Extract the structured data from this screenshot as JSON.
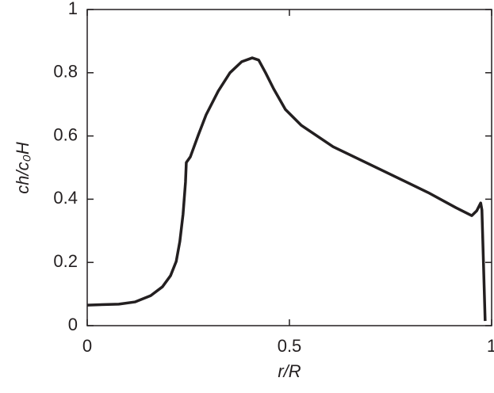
{
  "chart_data": {
    "type": "line",
    "x_label": "r/R",
    "y_label": "ch/c₀H",
    "xlim": [
      0,
      1
    ],
    "ylim": [
      0,
      1
    ],
    "xticks": [
      0,
      0.5,
      1
    ],
    "yticks": [
      0,
      0.2,
      0.4,
      0.6,
      0.8,
      1
    ],
    "x": [
      0,
      0.078,
      0.118,
      0.157,
      0.186,
      0.206,
      0.22,
      0.229,
      0.237,
      0.243,
      0.245,
      0.255,
      0.275,
      0.294,
      0.324,
      0.353,
      0.382,
      0.408,
      0.424,
      0.441,
      0.461,
      0.49,
      0.529,
      0.608,
      0.725,
      0.843,
      0.912,
      0.951,
      0.963,
      0.973,
      0.976,
      0.984
    ],
    "series": [
      {
        "color": "#231f20",
        "values": [
          0.065,
          0.068,
          0.075,
          0.095,
          0.123,
          0.158,
          0.203,
          0.266,
          0.353,
          0.454,
          0.516,
          0.534,
          0.604,
          0.667,
          0.742,
          0.8,
          0.835,
          0.847,
          0.84,
          0.8,
          0.749,
          0.684,
          0.634,
          0.566,
          0.494,
          0.421,
          0.373,
          0.348,
          0.363,
          0.388,
          0.366,
          0.015
        ]
      }
    ]
  }
}
